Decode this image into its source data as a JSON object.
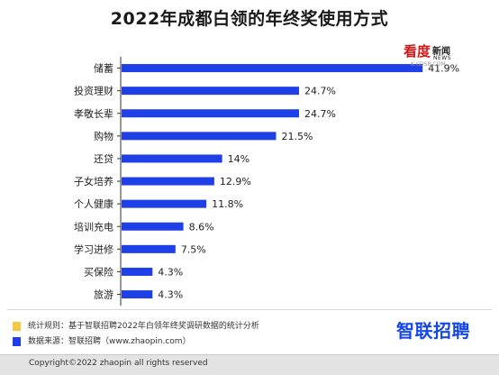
{
  "chart_data": {
    "type": "bar",
    "orientation": "horizontal",
    "title": "2022年成都白领的年终奖使用方式",
    "categories": [
      "储蓄",
      "投资理财",
      "孝敬长辈",
      "购物",
      "还贷",
      "子女培养",
      "个人健康",
      "培训充电",
      "学习进修",
      "买保险",
      "旅游"
    ],
    "values": [
      41.9,
      24.7,
      24.7,
      21.5,
      14,
      12.9,
      11.8,
      8.6,
      7.5,
      4.3,
      4.3
    ],
    "value_labels": [
      "41.9%",
      "24.7%",
      "24.7%",
      "21.5%",
      "14%",
      "12.9%",
      "11.8%",
      "8.6%",
      "7.5%",
      "4.3%",
      "4.3%"
    ],
    "xlim": [
      0,
      42
    ],
    "bar_color": "#1e40e6",
    "grid": false
  },
  "watermark": {
    "brand": "看度",
    "brand_cn": "新闻",
    "brand_en": "NEWS",
    "sub": "K.CDSB.COM"
  },
  "notes": [
    {
      "text": "统计规则：基于智联招聘2022年白领年终奖调研数据的统计分析",
      "color": "#f5c842"
    },
    {
      "text": "数据来源：智联招聘（www.zhaopin.com）",
      "color": "#1e40e6"
    }
  ],
  "logo_text": "智联招聘",
  "copyright": "Copyright©2022 zhaopin all rights reserved"
}
